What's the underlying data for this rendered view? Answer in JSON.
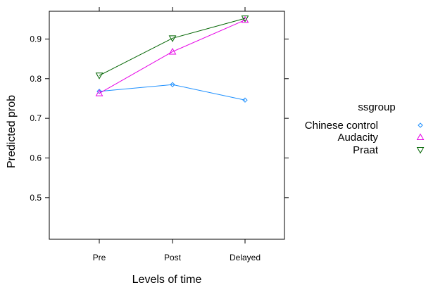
{
  "chart_data": {
    "type": "line",
    "xlabel": "Levels of time",
    "ylabel": "Predicted prob",
    "categories": [
      "Pre",
      "Post",
      "Delayed"
    ],
    "ylim": [
      0.395,
      0.97
    ],
    "yticks": [
      0.5,
      0.6,
      0.7,
      0.8,
      0.9
    ],
    "ytick_labels": [
      "0.5",
      "0.6",
      "0.7",
      "0.8",
      "0.9"
    ],
    "grid": false,
    "legend": {
      "title": "ssgroup",
      "placement": "right"
    },
    "series": [
      {
        "name": "Chinese control",
        "values": [
          0.768,
          0.785,
          0.746
        ],
        "color": "#1E90FF",
        "marker": "diamond"
      },
      {
        "name": "Audacity",
        "values": [
          0.763,
          0.868,
          0.948
        ],
        "color": "#E600E6",
        "marker": "triangle-up"
      },
      {
        "name": "Praat",
        "values": [
          0.808,
          0.902,
          0.952
        ],
        "color": "#006400",
        "marker": "triangle-down"
      }
    ]
  }
}
